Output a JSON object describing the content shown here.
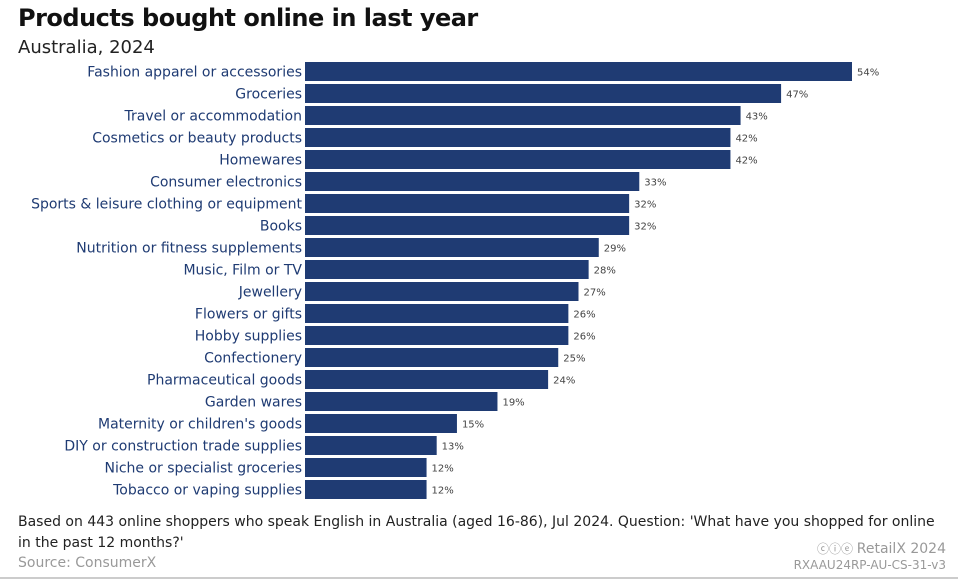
{
  "chart_data": {
    "type": "bar",
    "orientation": "horizontal",
    "title": "Products bought online in last year",
    "subtitle": "Australia, 2024",
    "categories": [
      "Fashion apparel or accessories",
      "Groceries",
      "Travel or accommodation",
      "Cosmetics or beauty products",
      "Homewares",
      "Consumer electronics",
      "Sports & leisure clothing or equipment",
      "Books",
      "Nutrition or fitness supplements",
      "Music, Film or TV",
      "Jewellery",
      "Flowers or gifts",
      "Hobby supplies",
      "Confectionery",
      "Pharmaceutical goods",
      "Garden wares",
      "Maternity or children's goods",
      "DIY or construction trade supplies",
      "Niche or specialist groceries",
      "Tobacco or vaping supplies"
    ],
    "values": [
      54,
      47,
      43,
      42,
      42,
      33,
      32,
      32,
      29,
      28,
      27,
      26,
      26,
      25,
      24,
      19,
      15,
      13,
      12,
      12
    ],
    "unit": "%",
    "xlim": [
      0,
      54
    ],
    "grid": false,
    "bar_color": "#1f3b73"
  },
  "footer": {
    "note": "Based on 443 online shoppers who speak English in Australia (aged 16-86), Jul 2024. Question: 'What have you shopped for online in the past 12 months?'",
    "source": "Source: ConsumerX",
    "brand": "RetailX 2024",
    "license_icon": "cc-by-nd-icon",
    "code": "RXAAU24RP-AU-CS-31-v3"
  }
}
